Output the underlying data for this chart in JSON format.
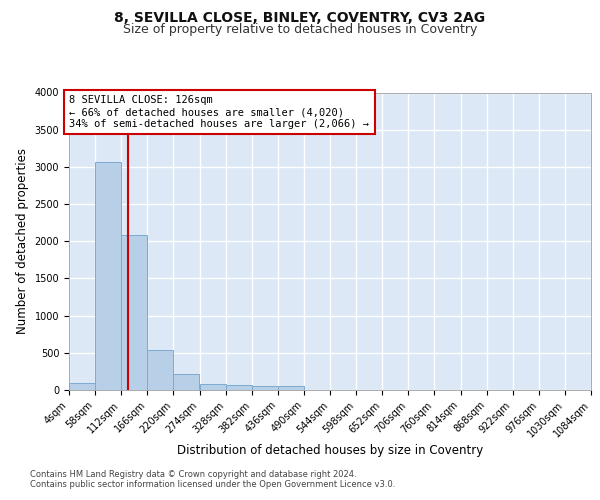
{
  "title1": "8, SEVILLA CLOSE, BINLEY, COVENTRY, CV3 2AG",
  "title2": "Size of property relative to detached houses in Coventry",
  "xlabel": "Distribution of detached houses by size in Coventry",
  "ylabel": "Number of detached properties",
  "bin_edges": [
    4,
    58,
    112,
    166,
    220,
    274,
    328,
    382,
    436,
    490,
    544,
    598,
    652,
    706,
    760,
    814,
    868,
    922,
    976,
    1030,
    1084
  ],
  "bar_heights": [
    100,
    3060,
    2080,
    540,
    210,
    85,
    65,
    55,
    50,
    0,
    0,
    0,
    0,
    0,
    0,
    0,
    0,
    0,
    0,
    0
  ],
  "bar_color": "#b8cfe8",
  "bar_edge_color": "#7eaad0",
  "background_color": "#dce8f5",
  "grid_color": "#ffffff",
  "property_size": 126,
  "vline_color": "#cc0000",
  "annotation_text": "8 SEVILLA CLOSE: 126sqm\n← 66% of detached houses are smaller (4,020)\n34% of semi-detached houses are larger (2,066) →",
  "annotation_box_color": "#ffffff",
  "annotation_box_edge": "#cc0000",
  "ylim": [
    0,
    4000
  ],
  "yticks": [
    0,
    500,
    1000,
    1500,
    2000,
    2500,
    3000,
    3500,
    4000
  ],
  "footnote1": "Contains HM Land Registry data © Crown copyright and database right 2024.",
  "footnote2": "Contains public sector information licensed under the Open Government Licence v3.0.",
  "title1_fontsize": 10,
  "title2_fontsize": 9,
  "tick_fontsize": 7,
  "label_fontsize": 8.5,
  "footnote_fontsize": 6
}
